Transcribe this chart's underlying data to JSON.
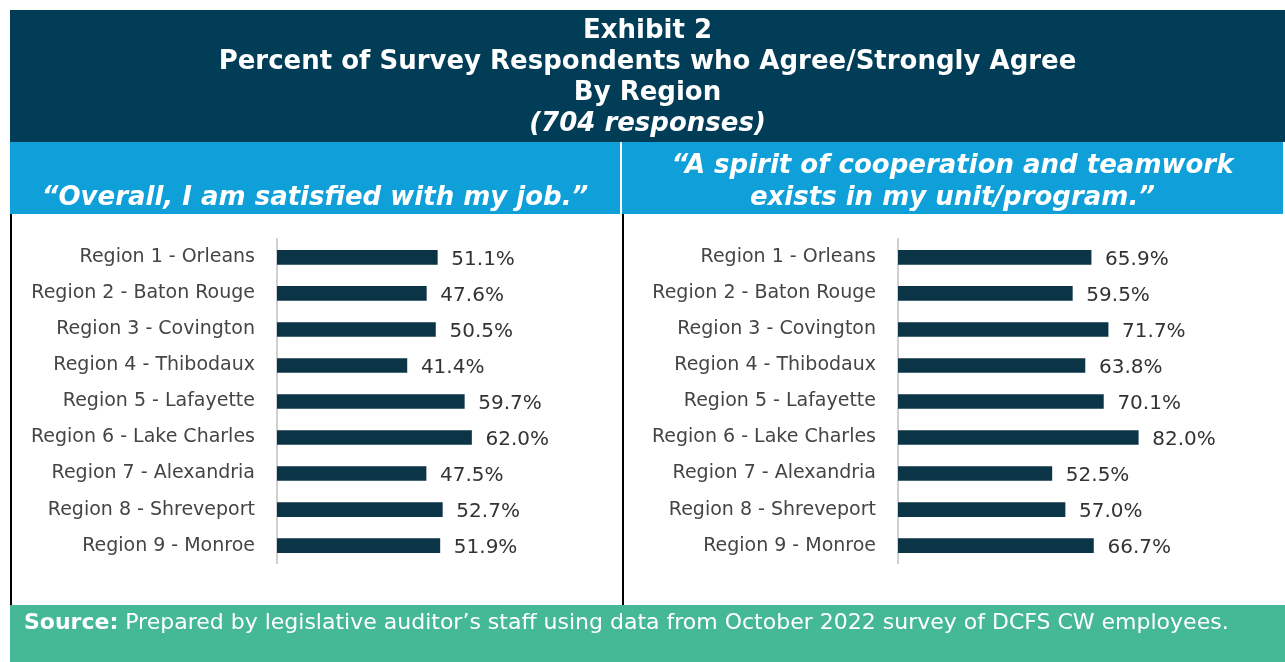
{
  "chart_data": [
    {
      "type": "other",
      "title": "Exhibit 2",
      "annotations": [
        "Percent of Survey Respondents who Agree/Strongly Agree",
        "By Region",
        "(704 responses)"
      ]
    },
    {
      "type": "bar",
      "orientation": "horizontal",
      "title": "“Overall, I am satisfied with my job.”",
      "categories": [
        "Region 1 - Orleans",
        "Region 2 - Baton Rouge",
        "Region 3 - Covington",
        "Region 4 - Thibodaux",
        "Region 5 - Lafayette",
        "Region 6 - Lake Charles",
        "Region 7 - Alexandria",
        "Region 8 - Shreveport",
        "Region 9 - Monroe"
      ],
      "values": [
        51.1,
        47.6,
        50.5,
        41.4,
        59.7,
        62.0,
        47.5,
        52.7,
        51.9
      ],
      "value_labels": [
        "51.1%",
        "47.6%",
        "50.5%",
        "41.4%",
        "59.7%",
        "62.0%",
        "47.5%",
        "52.7%",
        "51.9%"
      ],
      "color": "#0b3547"
    },
    {
      "type": "bar",
      "orientation": "horizontal",
      "title": "“A spirit of cooperation and teamwork exists in my unit/program.”",
      "categories": [
        "Region 1 - Orleans",
        "Region 2 - Baton Rouge",
        "Region 3 - Covington",
        "Region 4 - Thibodaux",
        "Region 5 - Lafayette",
        "Region 6 - Lake Charles",
        "Region 7 - Alexandria",
        "Region 8 - Shreveport",
        "Region 9 - Monroe"
      ],
      "values": [
        65.9,
        59.5,
        71.7,
        63.8,
        70.1,
        82.0,
        52.5,
        57.0,
        66.7
      ],
      "value_labels": [
        "65.9%",
        "59.5%",
        "71.7%",
        "63.8%",
        "70.1%",
        "82.0%",
        "52.5%",
        "57.0%",
        "66.7%"
      ],
      "color": "#0b3547"
    },
    {
      "type": "other",
      "annotations": [
        "Source: Prepared by legislative auditor’s staff using data from October 2022 survey of DCFS CW employees."
      ]
    }
  ]
}
